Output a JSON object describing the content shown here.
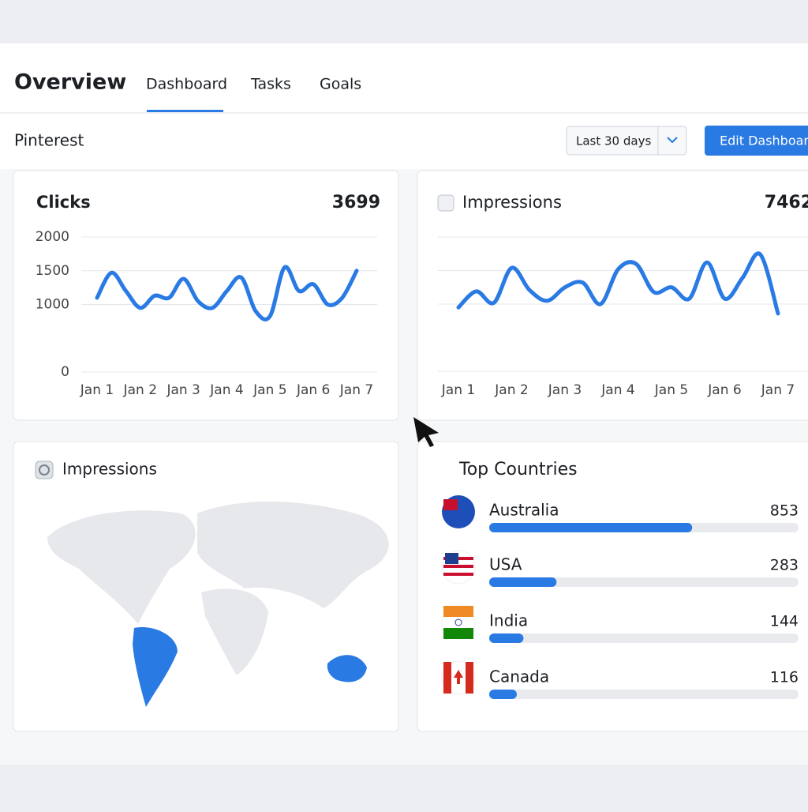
{
  "header": {
    "title": "Overview",
    "tabs": [
      "Dashboard",
      "Tasks",
      "Goals"
    ]
  },
  "toolbar": {
    "account": "Pinterest",
    "date_range": "Last 30 days",
    "button": "Edit Dashboard"
  },
  "chart_data": [
    {
      "type": "line",
      "title": "Clicks",
      "total": 3699,
      "categories": [
        "Jan 1",
        null,
        null,
        "Jan 2",
        null,
        null,
        "Jan 3",
        null,
        null,
        "Jan 4",
        null,
        null,
        "Jan 5",
        null,
        null,
        "Jan 6",
        null,
        null,
        "Jan 7"
      ],
      "values": [
        1100,
        1470,
        1200,
        950,
        1130,
        1100,
        1380,
        1050,
        950,
        1200,
        1400,
        900,
        830,
        1550,
        1200,
        1300,
        1000,
        1100,
        1500
      ],
      "color": "#2a7ae4",
      "ylim": [
        0,
        2000
      ],
      "yticks": [
        0,
        1000,
        1500,
        2000
      ],
      "grid": true
    },
    {
      "type": "line",
      "title": "Impressions",
      "total": 7462,
      "categories": [
        "Jan 1",
        null,
        null,
        "Jan 2",
        null,
        null,
        "Jan 3",
        null,
        null,
        "Jan 4",
        null,
        null,
        "Jan 5",
        null,
        null,
        "Jan 6",
        null,
        null,
        "Jan 7"
      ],
      "values": [
        950,
        1190,
        1020,
        1540,
        1210,
        1050,
        1250,
        1320,
        1000,
        1520,
        1600,
        1180,
        1250,
        1080,
        1620,
        1080,
        1390,
        1740,
        860
      ],
      "color": "#2a7ae4",
      "ylim": [
        0,
        2000
      ],
      "yticks": [
        0,
        1000,
        1500,
        2000
      ],
      "ytick_labels": false,
      "grid": true
    },
    {
      "type": "bar",
      "orientation": "horizontal",
      "title": "Top Countries",
      "categories": [
        "Australia",
        "USA",
        "India",
        "Canada"
      ],
      "values": [
        853,
        283,
        144,
        116
      ],
      "xlim": [
        0,
        1300
      ],
      "color": "#2a7ae4"
    }
  ],
  "map": {
    "title": "Impressions"
  }
}
